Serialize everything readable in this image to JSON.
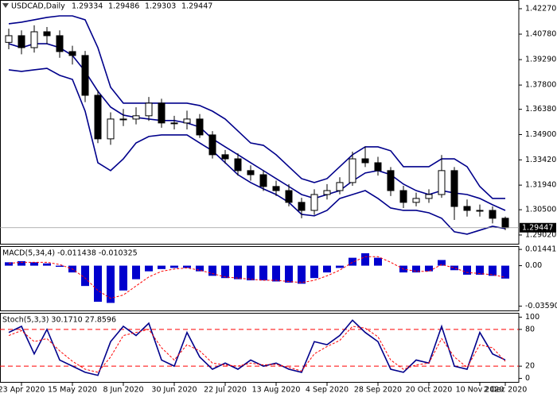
{
  "chart_data": [
    {
      "type": "candlestick",
      "title": "USDCAD,Daily",
      "quote": [
        1.29334,
        1.29486,
        1.29303,
        1.29447
      ],
      "categories": [
        null,
        "23 Apr 2020",
        null,
        null,
        null,
        "15 May 2020",
        null,
        null,
        null,
        "8 Jun 2020",
        null,
        null,
        null,
        "30 Jun 2020",
        null,
        null,
        null,
        "22 Jul 2020",
        null,
        null,
        null,
        "13 Aug 2020",
        null,
        null,
        null,
        "4 Sep 2020",
        null,
        null,
        null,
        "28 Sep 2020",
        null,
        null,
        null,
        "20 Oct 2020",
        null,
        null,
        null,
        "10 Nov 2020",
        null,
        "2 Dec 2020"
      ],
      "open": [
        1.403,
        1.4069,
        1.3999,
        1.4092,
        1.4069,
        1.3976,
        1.3953,
        1.372,
        1.3465,
        1.3581,
        1.3581,
        1.36,
        1.3674,
        1.3558,
        1.3558,
        1.3581,
        1.3488,
        1.3372,
        1.3348,
        1.3279,
        1.3255,
        1.3186,
        1.3162,
        1.3093,
        1.3046,
        1.3139,
        1.3162,
        1.3209,
        1.3348,
        1.3325,
        1.3279,
        1.3162,
        1.3093,
        1.3116,
        1.3139,
        1.3279,
        1.3069,
        1.3046,
        1.3046,
        1.3
      ],
      "high": [
        1.411,
        1.41,
        1.413,
        1.412,
        1.41,
        1.401,
        1.398,
        1.375,
        1.362,
        1.364,
        1.365,
        1.371,
        1.37,
        1.36,
        1.363,
        1.361,
        1.351,
        1.34,
        1.338,
        1.331,
        1.328,
        1.322,
        1.32,
        1.312,
        1.317,
        1.32,
        1.324,
        1.339,
        1.342,
        1.336,
        1.33,
        1.319,
        1.315,
        1.317,
        1.337,
        1.33,
        1.311,
        1.308,
        1.307,
        1.301
      ],
      "low": [
        1.399,
        1.396,
        1.397,
        1.402,
        1.394,
        1.39,
        1.368,
        1.344,
        1.343,
        1.354,
        1.355,
        1.357,
        1.353,
        1.352,
        1.352,
        1.347,
        1.335,
        1.332,
        1.325,
        1.322,
        1.316,
        1.313,
        1.307,
        1.3,
        1.302,
        1.311,
        1.314,
        1.319,
        1.33,
        1.325,
        1.313,
        1.306,
        1.307,
        1.309,
        1.312,
        1.299,
        1.301,
        1.301,
        1.297,
        1.293
      ],
      "close": [
        1.4069,
        1.3999,
        1.4092,
        1.4069,
        1.3976,
        1.3953,
        1.372,
        1.3465,
        1.3581,
        1.3581,
        1.36,
        1.3674,
        1.3558,
        1.3558,
        1.3581,
        1.3488,
        1.3372,
        1.3348,
        1.3279,
        1.3255,
        1.3186,
        1.3162,
        1.3093,
        1.3046,
        1.3139,
        1.3162,
        1.3209,
        1.3348,
        1.3325,
        1.3279,
        1.3162,
        1.3093,
        1.3116,
        1.3139,
        1.3279,
        1.3069,
        1.3046,
        1.3046,
        1.3,
        1.2945
      ],
      "up_color": "#ffffff",
      "down_color": "#000000",
      "series": [
        {
          "color": "#00008b",
          "values": [
            1.4139,
            1.4148,
            1.4162,
            1.4176,
            1.4185,
            1.4185,
            1.4162,
            1.3999,
            1.3767,
            1.3674,
            1.3674,
            1.3674,
            1.3674,
            1.3674,
            1.3674,
            1.366,
            1.3627,
            1.3581,
            1.3511,
            1.3441,
            1.3427,
            1.3372,
            1.3302,
            1.3232,
            1.3209,
            1.3232,
            1.3302,
            1.3372,
            1.3418,
            1.3418,
            1.3395,
            1.3302,
            1.3302,
            1.3302,
            1.3348,
            1.3348,
            1.3302,
            1.3186,
            1.3116,
            1.3116
          ]
        },
        {
          "color": "#00008b",
          "values": [
            1.4022,
            1.3999,
            1.4022,
            1.4022,
            1.3999,
            1.3953,
            1.386,
            1.3744,
            1.3651,
            1.3604,
            1.359,
            1.3581,
            1.3572,
            1.3572,
            1.3558,
            1.3534,
            1.3465,
            1.3418,
            1.3372,
            1.3325,
            1.3279,
            1.3232,
            1.3186,
            1.3139,
            1.3116,
            1.3139,
            1.3162,
            1.3218,
            1.3265,
            1.3279,
            1.3255,
            1.32,
            1.3162,
            1.3139,
            1.3162,
            1.3148,
            1.3139,
            1.3116,
            1.3079,
            1.3046
          ]
        },
        {
          "color": "#00008b",
          "values": [
            1.3869,
            1.386,
            1.3869,
            1.3878,
            1.3837,
            1.3813,
            1.3627,
            1.3325,
            1.3279,
            1.3348,
            1.3441,
            1.3479,
            1.3488,
            1.3488,
            1.3488,
            1.3441,
            1.3395,
            1.3325,
            1.3255,
            1.3209,
            1.3172,
            1.3139,
            1.3093,
            1.3023,
            1.3014,
            1.3046,
            1.3116,
            1.3139,
            1.3162,
            1.3116,
            1.306,
            1.3046,
            1.3046,
            1.3032,
            1.3,
            1.2921,
            1.2907,
            1.293,
            1.2953,
            1.2939
          ]
        }
      ],
      "ylim": [
        1.2846,
        1.4278
      ],
      "yticks": [
        {
          "value": 1.4227,
          "label": "1.42270"
        },
        {
          "value": 1.4078,
          "label": "1.40780"
        },
        {
          "value": 1.3929,
          "label": "1.39290"
        },
        {
          "value": 1.378,
          "label": "1.37800"
        },
        {
          "value": 1.3638,
          "label": "1.36380"
        },
        {
          "value": 1.349,
          "label": "1.34900"
        },
        {
          "value": 1.3342,
          "label": "1.33420"
        },
        {
          "value": 1.3194,
          "label": "1.31940"
        },
        {
          "value": 1.305,
          "label": "1.30500"
        },
        {
          "value": 1.2902,
          "label": "1.29020"
        }
      ]
    },
    {
      "type": "bar",
      "title": "MACD(5,34,4) -0.011438 -0.010325",
      "series": [
        {
          "color": "#0000cd",
          "values": [
            0.003,
            0.004,
            0.003,
            0.002,
            -0.001,
            -0.006,
            -0.018,
            -0.032,
            -0.033,
            -0.022,
            -0.012,
            -0.005,
            -0.003,
            -0.002,
            -0.002,
            -0.005,
            -0.009,
            -0.011,
            -0.012,
            -0.013,
            -0.013,
            -0.014,
            -0.015,
            -0.016,
            -0.011,
            -0.006,
            -0.002,
            0.007,
            0.011,
            0.007,
            0.0,
            -0.006,
            -0.006,
            -0.005,
            0.005,
            -0.004,
            -0.008,
            -0.008,
            -0.009,
            -0.011438
          ]
        },
        {
          "color": "#ff0000",
          "dashed": true,
          "values": [
            0.002,
            0.003,
            0.003,
            0.003,
            0.001,
            -0.003,
            -0.011,
            -0.022,
            -0.029,
            -0.026,
            -0.018,
            -0.01,
            -0.005,
            -0.003,
            -0.002,
            -0.004,
            -0.007,
            -0.01,
            -0.011,
            -0.012,
            -0.013,
            -0.013,
            -0.014,
            -0.015,
            -0.013,
            -0.009,
            -0.004,
            0.003,
            0.008,
            0.008,
            0.003,
            -0.003,
            -0.005,
            -0.005,
            0.001,
            -0.002,
            -0.006,
            -0.007,
            -0.008,
            -0.010325
          ]
        }
      ],
      "ylim": [
        -0.0404,
        0.0173
      ],
      "yticks": [
        0.014417,
        {
          "value": 0,
          "label": "0.00"
        },
        -0.035904
      ]
    },
    {
      "type": "line",
      "title": "Stoch(5,3,3) 30.1710 27.8596",
      "series": [
        {
          "color": "#00008b",
          "values": [
            75,
            85,
            40,
            80,
            30,
            20,
            10,
            5,
            60,
            85,
            70,
            90,
            30,
            20,
            75,
            35,
            15,
            25,
            15,
            30,
            20,
            25,
            15,
            10,
            60,
            55,
            70,
            95,
            75,
            60,
            15,
            10,
            30,
            25,
            85,
            20,
            15,
            75,
            40,
            30.171
          ]
        },
        {
          "color": "#ff0000",
          "dashed": true,
          "values": [
            70,
            78,
            60,
            65,
            45,
            28,
            15,
            10,
            35,
            70,
            75,
            80,
            50,
            30,
            55,
            45,
            25,
            22,
            20,
            25,
            22,
            23,
            18,
            12,
            40,
            52,
            62,
            85,
            82,
            68,
            30,
            15,
            22,
            25,
            65,
            35,
            18,
            55,
            50,
            27.8596
          ]
        }
      ],
      "levels": [
        80,
        20
      ],
      "level_color": "#ff0000",
      "ylim": [
        -7,
        107
      ],
      "yticks": [
        100,
        80,
        20,
        0
      ]
    }
  ]
}
